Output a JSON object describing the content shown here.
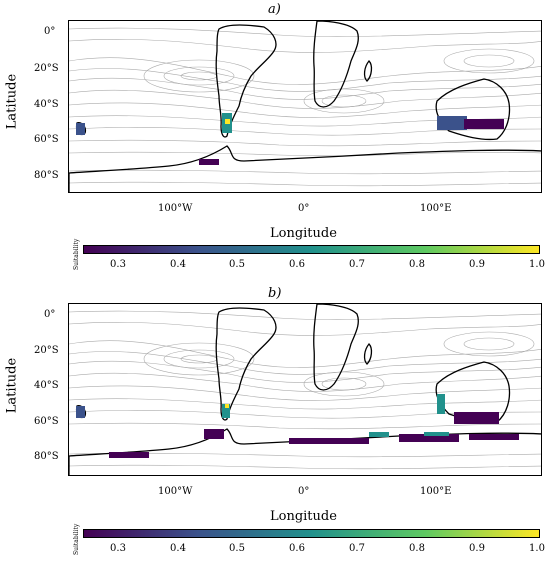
{
  "panels": [
    {
      "title": "a)",
      "ylabel": "Latitude",
      "xlabel": "Longitude",
      "y_ticks": [
        "0°",
        "20°S",
        "40°S",
        "60°S",
        "80°S"
      ],
      "x_ticks": [
        "100°W",
        "0°",
        "100°E"
      ],
      "colorbar_label": "Suitability",
      "colorbar_ticks": [
        "0.3",
        "0.4",
        "0.5",
        "0.6",
        "0.7",
        "0.8",
        "0.9",
        "1.0"
      ]
    },
    {
      "title": "b)",
      "ylabel": "Latitude",
      "xlabel": "Longitude",
      "y_ticks": [
        "0°",
        "20°S",
        "40°S",
        "60°S",
        "80°S"
      ],
      "x_ticks": [
        "100°W",
        "0°",
        "100°E"
      ],
      "colorbar_label": "Suitability",
      "colorbar_ticks": [
        "0.3",
        "0.4",
        "0.5",
        "0.6",
        "0.7",
        "0.8",
        "0.9",
        "1.0"
      ]
    }
  ],
  "colors": {
    "low": "#440154",
    "mid": "#21918c",
    "high": "#fde725",
    "contour": "#aaaaaa",
    "coast": "#000000"
  }
}
